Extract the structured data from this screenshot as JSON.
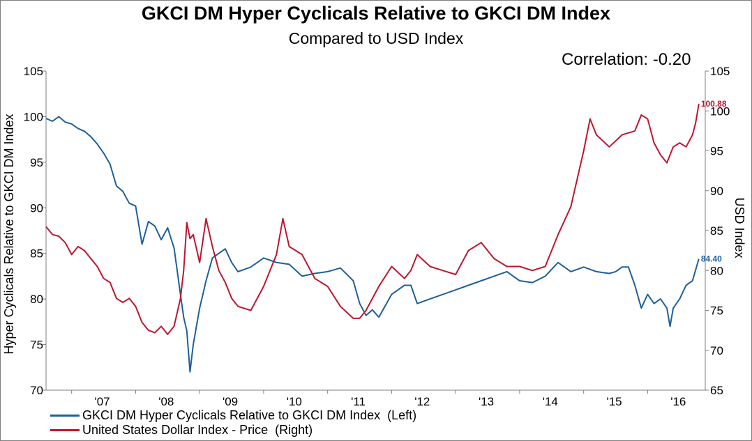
{
  "chart_data": {
    "type": "line",
    "title": "GKCI DM Hyper Cyclicals Relative to GKCI DM Index",
    "subtitle": "Compared to USD Index",
    "annotation": "Correlation: -0.20",
    "ylabel_left": "Hyper Cyclicals Relative to GKCI DM Index",
    "ylabel_right": "USD Index",
    "x_ticks": [
      "'07",
      "'08",
      "'09",
      "'10",
      "'11",
      "'12",
      "'13",
      "'14",
      "'15",
      "'16"
    ],
    "x_range": [
      2006.6,
      2016.9
    ],
    "y_left": {
      "min": 70,
      "max": 105,
      "ticks": [
        "70",
        "75",
        "80",
        "85",
        "90",
        "95",
        "100",
        "105"
      ]
    },
    "y_right": {
      "min": 65,
      "max": 105,
      "ticks": [
        "65",
        "70",
        "75",
        "80",
        "85",
        "90",
        "95",
        "100",
        "105"
      ]
    },
    "grid": false,
    "legend_position": "bottom-left",
    "series": [
      {
        "name": "GKCI DM Hyper Cyclicals Relative to GKCI DM Index  (Left)",
        "axis": "left",
        "color": "#1f5f99",
        "end_label": "84.40",
        "points": [
          [
            2006.6,
            99.8
          ],
          [
            2006.7,
            99.5
          ],
          [
            2006.8,
            100.0
          ],
          [
            2006.9,
            99.4
          ],
          [
            2007.0,
            99.2
          ],
          [
            2007.1,
            98.7
          ],
          [
            2007.2,
            98.4
          ],
          [
            2007.3,
            97.8
          ],
          [
            2007.4,
            97.0
          ],
          [
            2007.5,
            96.0
          ],
          [
            2007.6,
            94.8
          ],
          [
            2007.7,
            92.4
          ],
          [
            2007.8,
            91.8
          ],
          [
            2007.9,
            90.5
          ],
          [
            2008.0,
            90.2
          ],
          [
            2008.1,
            86.0
          ],
          [
            2008.2,
            88.5
          ],
          [
            2008.3,
            88.0
          ],
          [
            2008.4,
            86.5
          ],
          [
            2008.5,
            87.8
          ],
          [
            2008.6,
            85.6
          ],
          [
            2008.7,
            80.5
          ],
          [
            2008.75,
            78.0
          ],
          [
            2008.8,
            76.5
          ],
          [
            2008.85,
            72.0
          ],
          [
            2008.9,
            75.0
          ],
          [
            2009.0,
            79.0
          ],
          [
            2009.1,
            82.0
          ],
          [
            2009.2,
            84.5
          ],
          [
            2009.3,
            85.0
          ],
          [
            2009.4,
            85.5
          ],
          [
            2009.5,
            84.0
          ],
          [
            2009.6,
            83.0
          ],
          [
            2009.8,
            83.5
          ],
          [
            2010.0,
            84.5
          ],
          [
            2010.2,
            84.0
          ],
          [
            2010.4,
            83.8
          ],
          [
            2010.6,
            82.5
          ],
          [
            2010.8,
            82.8
          ],
          [
            2011.0,
            83.0
          ],
          [
            2011.2,
            83.4
          ],
          [
            2011.4,
            82.0
          ],
          [
            2011.5,
            79.5
          ],
          [
            2011.6,
            78.2
          ],
          [
            2011.7,
            78.8
          ],
          [
            2011.8,
            78.0
          ],
          [
            2012.0,
            80.5
          ],
          [
            2012.2,
            81.5
          ],
          [
            2012.3,
            81.5
          ],
          [
            2012.4,
            79.5
          ],
          [
            2012.6,
            80.0
          ],
          [
            2012.8,
            80.5
          ],
          [
            2013.0,
            81.0
          ],
          [
            2013.2,
            81.5
          ],
          [
            2013.4,
            82.0
          ],
          [
            2013.6,
            82.5
          ],
          [
            2013.8,
            83.0
          ],
          [
            2014.0,
            82.0
          ],
          [
            2014.2,
            81.8
          ],
          [
            2014.4,
            82.5
          ],
          [
            2014.6,
            84.0
          ],
          [
            2014.8,
            83.0
          ],
          [
            2015.0,
            83.5
          ],
          [
            2015.2,
            83.0
          ],
          [
            2015.4,
            82.8
          ],
          [
            2015.5,
            83.0
          ],
          [
            2015.6,
            83.5
          ],
          [
            2015.7,
            83.5
          ],
          [
            2015.8,
            81.5
          ],
          [
            2015.9,
            79.0
          ],
          [
            2016.0,
            80.5
          ],
          [
            2016.1,
            79.5
          ],
          [
            2016.2,
            80.0
          ],
          [
            2016.3,
            79.0
          ],
          [
            2016.35,
            77.0
          ],
          [
            2016.4,
            79.0
          ],
          [
            2016.5,
            80.0
          ],
          [
            2016.6,
            81.5
          ],
          [
            2016.7,
            82.0
          ],
          [
            2016.8,
            84.4
          ]
        ]
      },
      {
        "name": "United States Dollar Index - Price  (Right)",
        "axis": "right",
        "color": "#c0152f",
        "end_label": "100.88",
        "points": [
          [
            2006.6,
            85.5
          ],
          [
            2006.7,
            84.5
          ],
          [
            2006.8,
            84.3
          ],
          [
            2006.9,
            83.5
          ],
          [
            2007.0,
            82.0
          ],
          [
            2007.1,
            83.0
          ],
          [
            2007.2,
            82.5
          ],
          [
            2007.3,
            81.5
          ],
          [
            2007.4,
            80.5
          ],
          [
            2007.5,
            79.0
          ],
          [
            2007.6,
            78.5
          ],
          [
            2007.7,
            76.5
          ],
          [
            2007.8,
            76.0
          ],
          [
            2007.9,
            76.5
          ],
          [
            2008.0,
            75.5
          ],
          [
            2008.1,
            73.5
          ],
          [
            2008.2,
            72.5
          ],
          [
            2008.3,
            72.2
          ],
          [
            2008.4,
            73.0
          ],
          [
            2008.5,
            72.0
          ],
          [
            2008.6,
            73.0
          ],
          [
            2008.7,
            76.5
          ],
          [
            2008.75,
            80.0
          ],
          [
            2008.8,
            86.0
          ],
          [
            2008.85,
            84.0
          ],
          [
            2008.9,
            84.5
          ],
          [
            2009.0,
            81.0
          ],
          [
            2009.1,
            86.5
          ],
          [
            2009.2,
            83.0
          ],
          [
            2009.3,
            80.0
          ],
          [
            2009.4,
            78.5
          ],
          [
            2009.5,
            76.5
          ],
          [
            2009.6,
            75.5
          ],
          [
            2009.8,
            75.0
          ],
          [
            2010.0,
            78.0
          ],
          [
            2010.2,
            82.0
          ],
          [
            2010.3,
            86.5
          ],
          [
            2010.4,
            83.0
          ],
          [
            2010.6,
            82.0
          ],
          [
            2010.8,
            79.0
          ],
          [
            2011.0,
            78.0
          ],
          [
            2011.2,
            75.5
          ],
          [
            2011.4,
            74.0
          ],
          [
            2011.5,
            74.0
          ],
          [
            2011.6,
            75.0
          ],
          [
            2011.8,
            78.0
          ],
          [
            2012.0,
            80.5
          ],
          [
            2012.2,
            79.0
          ],
          [
            2012.3,
            80.0
          ],
          [
            2012.4,
            82.0
          ],
          [
            2012.6,
            80.5
          ],
          [
            2012.8,
            80.0
          ],
          [
            2013.0,
            79.5
          ],
          [
            2013.2,
            82.5
          ],
          [
            2013.4,
            83.5
          ],
          [
            2013.6,
            81.5
          ],
          [
            2013.8,
            80.5
          ],
          [
            2014.0,
            80.5
          ],
          [
            2014.2,
            80.0
          ],
          [
            2014.4,
            80.5
          ],
          [
            2014.6,
            84.5
          ],
          [
            2014.8,
            88.0
          ],
          [
            2015.0,
            95.0
          ],
          [
            2015.1,
            99.0
          ],
          [
            2015.2,
            97.0
          ],
          [
            2015.4,
            95.5
          ],
          [
            2015.6,
            97.0
          ],
          [
            2015.8,
            97.5
          ],
          [
            2015.9,
            99.5
          ],
          [
            2016.0,
            99.0
          ],
          [
            2016.1,
            96.0
          ],
          [
            2016.2,
            94.5
          ],
          [
            2016.3,
            93.5
          ],
          [
            2016.4,
            95.5
          ],
          [
            2016.5,
            96.0
          ],
          [
            2016.6,
            95.5
          ],
          [
            2016.7,
            97.0
          ],
          [
            2016.75,
            98.5
          ],
          [
            2016.8,
            100.88
          ]
        ]
      }
    ]
  }
}
